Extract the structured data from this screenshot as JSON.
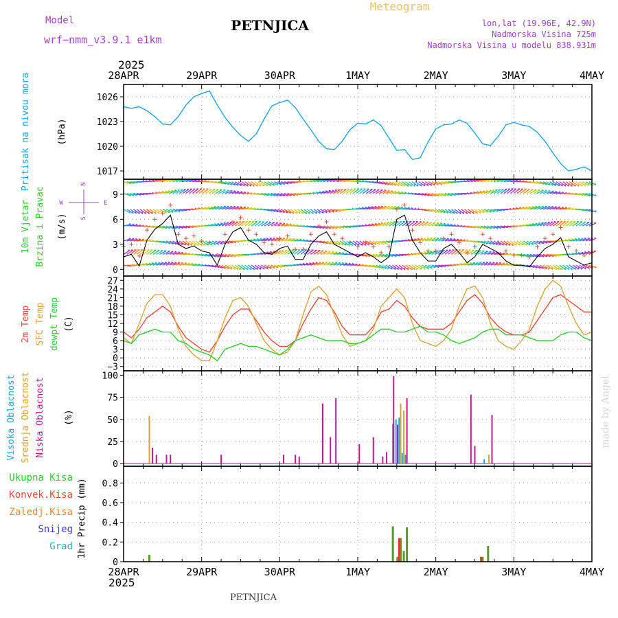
{
  "header": {
    "model_label": "Model",
    "model_name": "wrf−nmm_v3.9.1  e1km",
    "station": "PETNJICA",
    "product": "Meteogram",
    "lonlat": "lon,lat (19.96E, 42.9N)",
    "elevation": "Nadmorska Visina 725m",
    "model_elevation": "Nadmorska Visina u modelu 838.931m",
    "footer_station": "PETNJICA",
    "watermark": "made by Angel"
  },
  "time_axis": {
    "year": "2025",
    "ticks": [
      "28APR",
      "29APR",
      "30APR",
      "1MAY",
      "2MAY",
      "3MAY",
      "4MAY"
    ],
    "range_days": [
      0,
      6
    ]
  },
  "colors": {
    "pressure": "#1ea4e6",
    "temp2m": "#e84a3a",
    "sfc": "#d9a53c",
    "dew": "#2ecc2e",
    "high_cloud": "#1aa7d9",
    "mid_cloud": "#e0a12a",
    "low_cloud": "#c0198f",
    "total_precip": "#5a9a2a",
    "conv_precip": "#d93a2a",
    "header_purple": "#a33fd1",
    "meteogram_label": "#e8c06a"
  },
  "chart_data": [
    {
      "type": "line",
      "panel": "pressure",
      "ylabel": "Pritisak na nivou mora",
      "unit": "(hPa)",
      "yticks": [
        1017,
        1020,
        1023,
        1026
      ],
      "ylim": [
        1016,
        1027.5
      ],
      "series": [
        {
          "x": [
            0,
            0.1,
            0.2,
            0.3,
            0.4,
            0.5,
            0.6,
            0.7,
            0.8,
            0.9,
            1.0,
            1.1,
            1.2,
            1.3,
            1.4,
            1.5,
            1.6,
            1.7,
            1.8,
            1.9,
            2.0,
            2.1,
            2.2,
            2.3,
            2.4,
            2.5,
            2.6,
            2.7,
            2.8,
            2.9,
            3.0,
            3.1,
            3.2,
            3.3,
            3.4,
            3.5,
            3.6,
            3.7,
            3.8,
            3.9,
            4.0,
            4.1,
            4.2,
            4.3,
            4.4,
            4.5,
            4.6,
            4.7,
            4.8,
            4.9,
            5.0,
            5.1,
            5.2,
            5.3,
            5.4,
            5.5,
            5.6,
            5.7,
            5.8,
            5.9,
            6.0
          ],
          "y": [
            1024.8,
            1024.6,
            1024.8,
            1024.3,
            1023.6,
            1022.7,
            1022.6,
            1023.6,
            1025.0,
            1026.0,
            1026.4,
            1026.7,
            1025.0,
            1023.5,
            1022.3,
            1021.3,
            1020.6,
            1021.5,
            1023.3,
            1024.9,
            1025.3,
            1025.6,
            1024.7,
            1023.3,
            1022.0,
            1020.6,
            1019.7,
            1019.6,
            1020.6,
            1022.0,
            1022.8,
            1022.7,
            1023.2,
            1022.5,
            1021.0,
            1019.5,
            1019.6,
            1018.4,
            1018.6,
            1020.5,
            1022.1,
            1022.6,
            1022.7,
            1023.2,
            1022.8,
            1021.6,
            1020.3,
            1020.1,
            1021.2,
            1022.6,
            1022.9,
            1022.6,
            1022.4,
            1021.7,
            1020.6,
            1019.2,
            1017.9,
            1017.0,
            1017.2,
            1017.5,
            1017.0
          ]
        }
      ]
    },
    {
      "type": "line",
      "panel": "wind",
      "ylabel": "10m Vjetar Brzina i Pravac",
      "unit": "(m/s)",
      "compass": {
        "n": "N",
        "w": "W",
        "e": "E",
        "s": "S"
      },
      "yticks": [
        0,
        3,
        6,
        9
      ],
      "ylim": [
        -0.8,
        10.8
      ],
      "series": [
        {
          "name": "wind speed",
          "x": [
            0,
            0.1,
            0.2,
            0.3,
            0.4,
            0.5,
            0.6,
            0.7,
            0.8,
            0.9,
            1.0,
            1.1,
            1.2,
            1.3,
            1.4,
            1.5,
            1.6,
            1.7,
            1.8,
            1.9,
            2.0,
            2.1,
            2.2,
            2.3,
            2.4,
            2.5,
            2.6,
            2.7,
            2.8,
            2.9,
            3.0,
            3.1,
            3.2,
            3.3,
            3.4,
            3.5,
            3.6,
            3.7,
            3.8,
            3.9,
            4.0,
            4.1,
            4.2,
            4.3,
            4.4,
            4.5,
            4.6,
            4.7,
            4.8,
            4.9,
            5.0,
            5.1,
            5.2,
            5.3,
            5.4,
            5.5,
            5.6,
            5.7,
            5.8,
            5.9,
            6.0
          ],
          "y": [
            1.5,
            1.8,
            0.4,
            3.5,
            4.8,
            5.5,
            6.5,
            3.0,
            2.5,
            2.8,
            2.2,
            2.0,
            0.5,
            3.0,
            4.5,
            5.0,
            3.5,
            3.0,
            2.0,
            1.8,
            2.5,
            2.8,
            1.2,
            1.2,
            3.0,
            4.0,
            4.5,
            3.0,
            2.5,
            2.0,
            1.5,
            2.0,
            1.5,
            0.8,
            1.5,
            6.0,
            6.5,
            3.5,
            2.0,
            1.0,
            1.0,
            2.5,
            3.0,
            2.0,
            0.8,
            1.5,
            3.0,
            2.5,
            2.0,
            1.0,
            0.5,
            0.5,
            0.3,
            1.5,
            2.5,
            3.0,
            3.8,
            1.5,
            1.0,
            0.5,
            0.8
          ]
        }
      ],
      "arrow_rows": [
        0.5,
        1.8,
        3.4,
        5.2,
        7.2,
        9.1,
        10.5
      ]
    },
    {
      "type": "line",
      "panel": "temperature",
      "ylabel_lines": [
        "2m Temp",
        "SFC Temp",
        "dewpt Temp"
      ],
      "unit": "(C)",
      "yticks": [
        -3,
        0,
        3,
        6,
        9,
        12,
        15,
        18,
        21,
        24,
        27
      ],
      "ylim": [
        -4.5,
        28.5
      ],
      "x": [
        0,
        0.1,
        0.2,
        0.3,
        0.4,
        0.5,
        0.6,
        0.7,
        0.8,
        0.9,
        1.0,
        1.1,
        1.2,
        1.3,
        1.4,
        1.5,
        1.6,
        1.7,
        1.8,
        1.9,
        2.0,
        2.1,
        2.2,
        2.3,
        2.4,
        2.5,
        2.6,
        2.7,
        2.8,
        2.9,
        3.0,
        3.1,
        3.2,
        3.3,
        3.4,
        3.5,
        3.6,
        3.7,
        3.8,
        3.9,
        4.0,
        4.1,
        4.2,
        4.3,
        4.4,
        4.5,
        4.6,
        4.7,
        4.8,
        4.9,
        5.0,
        5.1,
        5.2,
        5.3,
        5.4,
        5.5,
        5.6,
        5.7,
        5.8,
        5.9,
        6.0
      ],
      "series": [
        {
          "name": "2m Temp",
          "color_key": "temp2m",
          "y": [
            9,
            7,
            10,
            14,
            16,
            18,
            16,
            11,
            7,
            5,
            3,
            2,
            6,
            11,
            15,
            17,
            17,
            13,
            9,
            6,
            4,
            4,
            6,
            12,
            17,
            21,
            20,
            16,
            11,
            8,
            8,
            8,
            11,
            16,
            17,
            20,
            18,
            14,
            11,
            10,
            10,
            10,
            12,
            16,
            20,
            22,
            19,
            14,
            11,
            9,
            8,
            8,
            9,
            13,
            17,
            21,
            22,
            20,
            18,
            16,
            16
          ]
        },
        {
          "name": "SFC Temp",
          "color_key": "sfc",
          "y": [
            7,
            5,
            12,
            19,
            22,
            22,
            18,
            10,
            4,
            1,
            -1,
            -1,
            6,
            14,
            20,
            21,
            18,
            12,
            6,
            3,
            1,
            2,
            6,
            15,
            23,
            25,
            22,
            15,
            8,
            4,
            5,
            6,
            10,
            18,
            21,
            24,
            21,
            12,
            6,
            5,
            4,
            6,
            10,
            18,
            24,
            25,
            21,
            12,
            6,
            4,
            3,
            6,
            10,
            18,
            24,
            27,
            25,
            18,
            12,
            8,
            9
          ]
        },
        {
          "name": "dewpt Temp",
          "color_key": "dew",
          "y": [
            6,
            5,
            8,
            9,
            10,
            9,
            9,
            6,
            5,
            3,
            2,
            1,
            -1,
            3,
            4,
            5,
            4,
            4,
            3,
            2,
            1,
            3,
            6,
            7,
            8,
            7,
            6,
            6,
            6,
            5,
            5,
            6,
            8,
            10,
            10,
            9,
            9,
            10,
            11,
            9,
            9,
            8,
            6,
            5,
            6,
            7,
            9,
            10,
            10,
            8,
            8,
            8,
            7,
            6,
            6,
            6,
            8,
            9,
            9,
            7,
            6
          ]
        }
      ]
    },
    {
      "type": "bar",
      "panel": "clouds",
      "ylabel_lines": [
        "Visoka Oblacnost",
        "Srednja Oblacnost",
        "Niska Oblacnost"
      ],
      "unit": "(%)",
      "yticks": [
        0,
        25,
        50,
        75,
        100
      ],
      "ylim": [
        -3,
        105
      ],
      "series": [
        {
          "name": "Visoka Oblacnost",
          "color_key": "high_cloud",
          "x": [
            3.45,
            3.49,
            3.53,
            3.57,
            3.61,
            4.62
          ],
          "values": [
            45,
            50,
            52,
            12,
            10,
            5
          ]
        },
        {
          "name": "Srednja Oblacnost",
          "color_key": "mid_cloud",
          "x": [
            0.33,
            3.55,
            3.59,
            4.68
          ],
          "values": [
            54,
            68,
            60,
            10
          ]
        },
        {
          "name": "Niska Oblacnost",
          "color_key": "low_cloud",
          "x": [
            0.37,
            0.42,
            0.55,
            0.6,
            1.25,
            2.05,
            2.2,
            2.25,
            2.55,
            2.65,
            2.72,
            3.02,
            3.2,
            3.32,
            3.37,
            3.46,
            3.51,
            3.63,
            4.45,
            4.5,
            4.72
          ],
          "values": [
            18,
            10,
            10,
            10,
            10,
            10,
            10,
            8,
            68,
            30,
            74,
            22,
            30,
            8,
            13,
            99,
            44,
            74,
            78,
            20,
            55
          ]
        }
      ]
    },
    {
      "type": "bar",
      "panel": "precip",
      "ylabel": "1hr Precip",
      "unit": "(mm)",
      "legend": [
        "Ukupna  Kisa",
        "Konvek.Kisa",
        "Zaledj.Kisa",
        "Snijeg",
        "Grad"
      ],
      "yticks": [
        0,
        0.2,
        0.4,
        0.6,
        0.8
      ],
      "ylim": [
        0,
        0.97
      ],
      "series": [
        {
          "name": "Ukupna  Kisa",
          "color_key": "total_precip",
          "x": [
            0.33,
            3.45,
            3.51,
            3.55,
            3.59,
            3.63,
            4.6,
            4.67
          ],
          "values": [
            0.07,
            0.36,
            0.05,
            0.24,
            0.11,
            0.35,
            0.05,
            0.16
          ]
        },
        {
          "name": "Konvek.Kisa",
          "color_key": "conv_precip",
          "x": [
            3.53,
            4.58
          ],
          "values": [
            0.24,
            0.05
          ]
        }
      ]
    }
  ]
}
